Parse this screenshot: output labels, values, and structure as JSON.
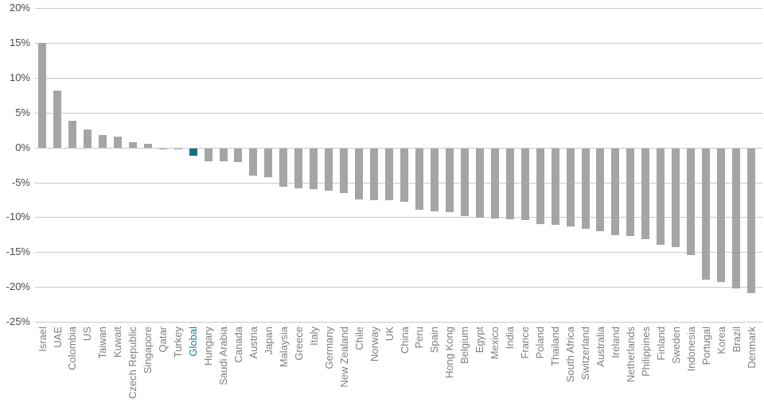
{
  "chart_data": {
    "type": "bar",
    "title": "",
    "xlabel": "",
    "ylabel": "",
    "unit": "%",
    "ylim": [
      -25,
      20
    ],
    "yticks": [
      20,
      15,
      10,
      5,
      0,
      -5,
      -10,
      -15,
      -20,
      -25
    ],
    "ytick_labels": [
      "20%",
      "15%",
      "10%",
      "5%",
      "0%",
      "-5%",
      "-10%",
      "-15%",
      "-20%",
      "-25%"
    ],
    "grid": true,
    "legend": "none",
    "highlight_category": "Global",
    "categories": [
      "Israel",
      "UAE",
      "Colombia",
      "US",
      "Taiwan",
      "Kuwait",
      "Czech Republic",
      "Singapore",
      "Qatar",
      "Turkey",
      "Global",
      "Hungary",
      "Saudi Arabia",
      "Canada",
      "Austria",
      "Japan",
      "Malaysia",
      "Greece",
      "Italy",
      "Germany",
      "New Zealand",
      "Chile",
      "Norway",
      "UK",
      "China",
      "Peru",
      "Spain",
      "Hong Kong",
      "Belgium",
      "Egypt",
      "Mexico",
      "India",
      "France",
      "Poland",
      "Thailand",
      "South Africa",
      "Switzerland",
      "Australia",
      "Ireland",
      "Netherlands",
      "Philippines",
      "Finland",
      "Sweden",
      "Indonesia",
      "Portugal",
      "Korea",
      "Brazil",
      "Denmark"
    ],
    "values": [
      15.0,
      8.2,
      3.8,
      2.6,
      1.8,
      1.5,
      0.8,
      0.5,
      -0.2,
      -0.2,
      -1.1,
      -1.9,
      -1.9,
      -2.0,
      -3.9,
      -4.1,
      -5.5,
      -5.8,
      -5.9,
      -6.1,
      -6.4,
      -7.3,
      -7.4,
      -7.4,
      -7.7,
      -8.8,
      -9.1,
      -9.2,
      -9.7,
      -10.0,
      -10.1,
      -10.2,
      -10.3,
      -10.9,
      -11.0,
      -11.2,
      -11.6,
      -11.9,
      -12.5,
      -12.6,
      -13.0,
      -13.8,
      -14.2,
      -15.3,
      -18.8,
      -19.2,
      -20.1,
      -20.8
    ],
    "colors": {
      "bar": "#A5A5A5",
      "highlight_bar": "#176D87",
      "category_label": "#7F7F7F",
      "highlight_category_label": "#1A7D99",
      "axis_tick_label": "#4A4A4A",
      "gridline": "#C9C9C9",
      "background": "#FFFFFF"
    }
  }
}
